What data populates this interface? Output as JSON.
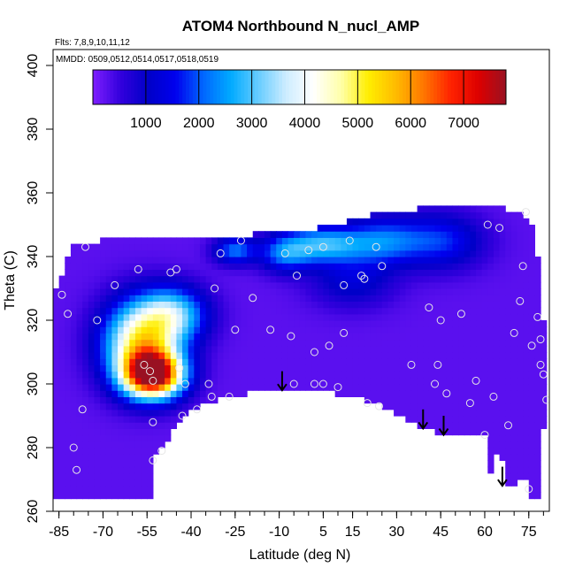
{
  "chart_data": {
    "type": "heatmap",
    "title": "ATOM4 Northbound N_nucl_AMP",
    "flights_note": "Flts: 7,8,9,10,11,12",
    "dates_note": "MMDD: 0509,0512,0514,0517,0518,0519",
    "xlabel": "Latitude (deg N)",
    "ylabel": "Theta (C)",
    "xlim": [
      -87,
      82
    ],
    "ylim": [
      260,
      405
    ],
    "x_ticks": [
      "-85",
      "-70",
      "-55",
      "-40",
      "-25",
      "-10",
      "5",
      "15",
      "30",
      "45",
      "60",
      "75"
    ],
    "y_ticks": [
      "260",
      "280",
      "300",
      "320",
      "340",
      "360",
      "380",
      "400"
    ],
    "colorbar": {
      "ticks": [
        "1000",
        "2000",
        "3000",
        "4000",
        "5000",
        "6000",
        "7000"
      ],
      "range": [
        0,
        7800
      ],
      "colors": [
        "#7f1fff",
        "#3300dd",
        "#0000c8",
        "#0000ee",
        "#0066ff",
        "#00aaff",
        "#66ccff",
        "#ccecff",
        "#ffffff",
        "#ffffaa",
        "#ffee00",
        "#ffbb00",
        "#ff7700",
        "#ff2200",
        "#dd0000",
        "#991122"
      ]
    },
    "background_value": 250,
    "hotspots": [
      {
        "lat": -53,
        "theta": 303,
        "value": 7200,
        "sigma_lat": 7,
        "sigma_theta": 5
      },
      {
        "lat": -57,
        "theta": 313,
        "value": 4500,
        "sigma_lat": 9,
        "sigma_theta": 9
      },
      {
        "lat": -46,
        "theta": 322,
        "value": 2600,
        "sigma_lat": 8,
        "sigma_theta": 6
      },
      {
        "lat": -25,
        "theta": 342,
        "value": 1900,
        "sigma_lat": 5,
        "sigma_theta": 3
      },
      {
        "lat": -8,
        "theta": 341,
        "value": 1800,
        "sigma_lat": 6,
        "sigma_theta": 4
      },
      {
        "lat": 5,
        "theta": 344,
        "value": 2400,
        "sigma_lat": 9,
        "sigma_theta": 4
      },
      {
        "lat": 25,
        "theta": 345,
        "value": 1800,
        "sigma_lat": 9,
        "sigma_theta": 5
      },
      {
        "lat": 45,
        "theta": 345,
        "value": 1500,
        "sigma_lat": 10,
        "sigma_theta": 6
      },
      {
        "lat": 15,
        "theta": 333,
        "value": 1000,
        "sigma_lat": 10,
        "sigma_theta": 6
      }
    ],
    "coverage_outline": [
      [
        -86,
        264
      ],
      [
        -86,
        329
      ],
      [
        -84,
        334
      ],
      [
        -81,
        343
      ],
      [
        -70,
        345
      ],
      [
        -55,
        346
      ],
      [
        -40,
        346
      ],
      [
        -28,
        345
      ],
      [
        -18,
        347
      ],
      [
        -5,
        348
      ],
      [
        10,
        350
      ],
      [
        22,
        353
      ],
      [
        38,
        355
      ],
      [
        55,
        357
      ],
      [
        72,
        354
      ],
      [
        76,
        350
      ],
      [
        78,
        340
      ],
      [
        79,
        330
      ],
      [
        80,
        320
      ],
      [
        81,
        310
      ],
      [
        81,
        300
      ],
      [
        80,
        285
      ],
      [
        79,
        270
      ],
      [
        79,
        264
      ],
      [
        76,
        264
      ],
      [
        74,
        270
      ],
      [
        70,
        268
      ],
      [
        68,
        268
      ],
      [
        67,
        275
      ],
      [
        64,
        278
      ],
      [
        61,
        270
      ],
      [
        60,
        284
      ],
      [
        56,
        284
      ],
      [
        52,
        283
      ],
      [
        47,
        284
      ],
      [
        45,
        284
      ],
      [
        40,
        286
      ],
      [
        33,
        289
      ],
      [
        25,
        293
      ],
      [
        15,
        296
      ],
      [
        5,
        298
      ],
      [
        -5,
        299
      ],
      [
        -12,
        298
      ],
      [
        -20,
        297
      ],
      [
        -30,
        295
      ],
      [
        -41,
        292
      ],
      [
        -45,
        287
      ],
      [
        -47,
        284
      ],
      [
        -49,
        280
      ],
      [
        -53,
        278
      ],
      [
        -53,
        264
      ]
    ],
    "obs_points": [
      [
        -84,
        328
      ],
      [
        -82,
        322
      ],
      [
        -80,
        280
      ],
      [
        -79,
        273
      ],
      [
        -77,
        292
      ],
      [
        -76,
        343
      ],
      [
        -72,
        320
      ],
      [
        -66,
        331
      ],
      [
        -58,
        336
      ],
      [
        -56,
        306
      ],
      [
        -54,
        304
      ],
      [
        -53,
        301
      ],
      [
        -53,
        288
      ],
      [
        -53,
        276
      ],
      [
        -50,
        279
      ],
      [
        -47,
        335
      ],
      [
        -45,
        336
      ],
      [
        -44,
        305
      ],
      [
        -43,
        290
      ],
      [
        -42,
        300
      ],
      [
        -38,
        292
      ],
      [
        -34,
        300
      ],
      [
        -33,
        296
      ],
      [
        -32,
        330
      ],
      [
        -30,
        341
      ],
      [
        -27,
        296
      ],
      [
        -25,
        317
      ],
      [
        -23,
        345
      ],
      [
        -19,
        327
      ],
      [
        -13,
        317
      ],
      [
        -8,
        341
      ],
      [
        -6,
        315
      ],
      [
        -5,
        300
      ],
      [
        -4,
        334
      ],
      [
        0,
        342
      ],
      [
        2,
        310
      ],
      [
        2,
        300
      ],
      [
        5,
        300
      ],
      [
        5,
        343
      ],
      [
        7,
        312
      ],
      [
        10,
        299
      ],
      [
        12,
        331
      ],
      [
        12,
        316
      ],
      [
        14,
        345
      ],
      [
        18,
        334
      ],
      [
        19,
        333
      ],
      [
        20,
        294
      ],
      [
        23,
        343
      ],
      [
        24,
        293
      ],
      [
        25,
        337
      ],
      [
        35,
        306
      ],
      [
        41,
        324
      ],
      [
        43,
        300
      ],
      [
        44,
        306
      ],
      [
        45,
        320
      ],
      [
        47,
        297
      ],
      [
        52,
        322
      ],
      [
        55,
        294
      ],
      [
        57,
        301
      ],
      [
        60,
        284
      ],
      [
        61,
        350
      ],
      [
        63,
        296
      ],
      [
        65,
        349
      ],
      [
        68,
        287
      ],
      [
        70,
        316
      ],
      [
        72,
        326
      ],
      [
        73,
        337
      ],
      [
        74,
        354
      ],
      [
        75,
        267
      ],
      [
        76,
        312
      ],
      [
        78,
        321
      ],
      [
        79,
        314
      ],
      [
        79,
        306
      ],
      [
        80,
        303
      ],
      [
        81,
        295
      ]
    ],
    "arrows": [
      {
        "lat": -9,
        "theta_top": 304,
        "theta_bottom": 298
      },
      {
        "lat": 39,
        "theta_top": 292,
        "theta_bottom": 286
      },
      {
        "lat": 46,
        "theta_top": 290,
        "theta_bottom": 284
      },
      {
        "lat": 66,
        "theta_top": 274,
        "theta_bottom": 268
      }
    ],
    "grid": false,
    "legend_placement": "top"
  }
}
